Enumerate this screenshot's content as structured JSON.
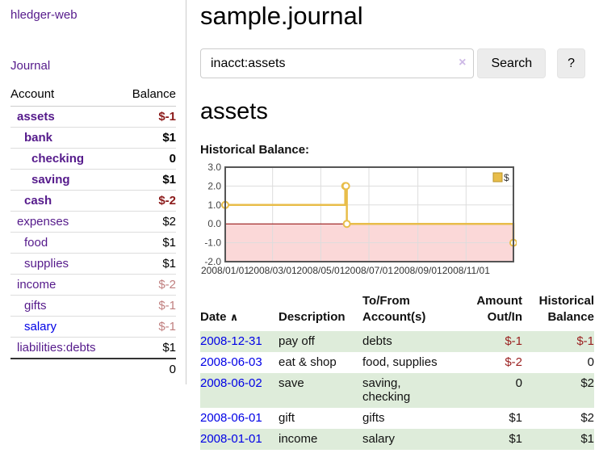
{
  "app": {
    "title": "hledger-web"
  },
  "sidebar": {
    "journal_label": "Journal",
    "accounts_table": {
      "headers": {
        "account": "Account",
        "balance": "Balance"
      },
      "rows": [
        {
          "name": "assets",
          "balance": "$-1",
          "level": 1,
          "in_filter": true,
          "balance_tone": "negative-strong"
        },
        {
          "name": "bank",
          "balance": "$1",
          "level": 2,
          "in_filter": true,
          "balance_tone": "normal"
        },
        {
          "name": "checking",
          "balance": "0",
          "level": 3,
          "in_filter": true,
          "balance_tone": "normal"
        },
        {
          "name": "saving",
          "balance": "$1",
          "level": 3,
          "in_filter": true,
          "balance_tone": "normal"
        },
        {
          "name": "cash",
          "balance": "$-2",
          "level": 2,
          "in_filter": true,
          "balance_tone": "negative-strong"
        },
        {
          "name": "expenses",
          "balance": "$2",
          "level": 1,
          "in_filter": false,
          "balance_tone": "normal"
        },
        {
          "name": "food",
          "balance": "$1",
          "level": 2,
          "in_filter": false,
          "balance_tone": "normal"
        },
        {
          "name": "supplies",
          "balance": "$1",
          "level": 2,
          "in_filter": false,
          "balance_tone": "normal"
        },
        {
          "name": "income",
          "balance": "$-2",
          "level": 1,
          "in_filter": false,
          "balance_tone": "negative-soft"
        },
        {
          "name": "gifts",
          "balance": "$-1",
          "level": 2,
          "in_filter": false,
          "balance_tone": "negative-soft"
        },
        {
          "name": "salary",
          "balance": "$-1",
          "level": 2,
          "in_filter": false,
          "balance_tone": "negative-soft",
          "unvisited": true
        },
        {
          "name": "liabilities:debts",
          "balance": "$1",
          "level": 1,
          "in_filter": false,
          "balance_tone": "normal"
        }
      ],
      "total": "0"
    }
  },
  "header": {
    "title": "sample.journal"
  },
  "search": {
    "value": "inacct:assets",
    "clear_icon": "×",
    "button_label": "Search",
    "help_label": "?"
  },
  "account_page": {
    "title": "assets",
    "chart_label": "Historical Balance:"
  },
  "chart_data": {
    "type": "line",
    "step": true,
    "title": "Historical Balance",
    "legend": "$",
    "legend_position": "top-right",
    "x_range": [
      "2008-01-01",
      "2008-12-31"
    ],
    "xticks": [
      "2008/01/01",
      "2008/03/01",
      "2008/05/01",
      "2008/07/01",
      "2008/09/01",
      "2008/11/01"
    ],
    "ylim": [
      -2,
      3
    ],
    "yticks": [
      -2,
      -1,
      0,
      1,
      2,
      3
    ],
    "grid": true,
    "points": [
      {
        "date": "2008-01-01",
        "value": 1
      },
      {
        "date": "2008-06-01",
        "value": 2
      },
      {
        "date": "2008-06-02",
        "value": 2
      },
      {
        "date": "2008-06-03",
        "value": 0
      },
      {
        "date": "2008-12-31",
        "value": -1
      }
    ],
    "colors": {
      "line": "#e8bd4a",
      "marker_fill": "#ffffff",
      "negative_region": "#fbd8d8",
      "zero_line": "#8b0000",
      "border": "#555555",
      "grid": "#dddddd",
      "tick_text": "#444444"
    }
  },
  "register": {
    "headers": {
      "date": "Date",
      "sort_indicator": "∧",
      "description": "Description",
      "tofrom_line1": "To/From",
      "tofrom_line2": "Account(s)",
      "amount_line1": "Amount",
      "amount_line2": "Out/In",
      "balance_line1": "Historical",
      "balance_line2": "Balance"
    },
    "rows": [
      {
        "date": "2008-12-31",
        "description": "pay off",
        "accounts": "debts",
        "amount": "$-1",
        "amount_negative": true,
        "balance": "$-1",
        "balance_negative": true,
        "highlight": true
      },
      {
        "date": "2008-06-03",
        "description": "eat & shop",
        "accounts": "food, supplies",
        "amount": "$-2",
        "amount_negative": true,
        "balance": "0",
        "balance_negative": false,
        "highlight": false
      },
      {
        "date": "2008-06-02",
        "description": "save",
        "accounts": "saving, checking",
        "amount": "0",
        "amount_negative": false,
        "balance": "$2",
        "balance_negative": false,
        "highlight": true
      },
      {
        "date": "2008-06-01",
        "description": "gift",
        "accounts": "gifts",
        "amount": "$1",
        "amount_negative": false,
        "balance": "$2",
        "balance_negative": false,
        "highlight": false
      },
      {
        "date": "2008-01-01",
        "description": "income",
        "accounts": "salary",
        "amount": "$1",
        "amount_negative": false,
        "balance": "$1",
        "balance_negative": false,
        "highlight": true
      }
    ]
  }
}
